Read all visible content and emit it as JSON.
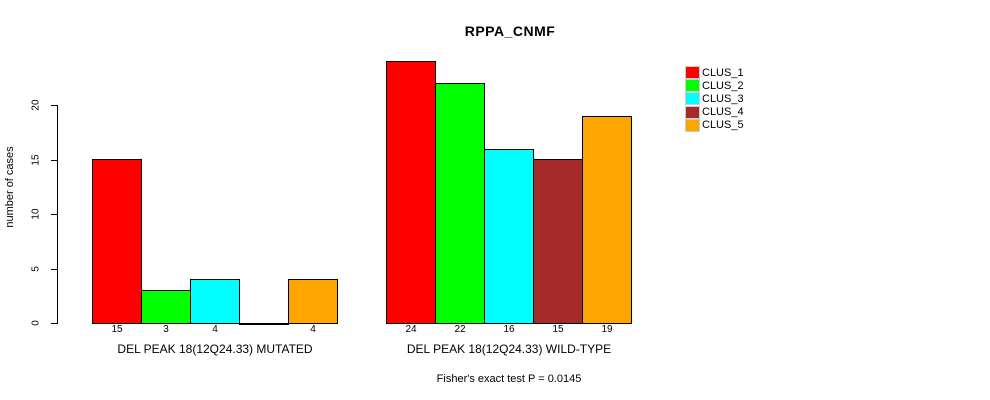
{
  "figure": {
    "title": "RPPA_CNMF",
    "y_axis_label": "number of cases",
    "caption": "Fisher's exact test P = 0.0145"
  },
  "chart_data": {
    "type": "bar",
    "title": "RPPA_CNMF",
    "xlabel": "",
    "ylabel": "number of cases",
    "ylim": [
      0,
      20
    ],
    "yticks": [
      0,
      5,
      10,
      15,
      20
    ],
    "grid": false,
    "legend_position": "right",
    "legend": [
      "CLUS_1",
      "CLUS_2",
      "CLUS_3",
      "CLUS_4",
      "CLUS_5"
    ],
    "series_colors": [
      "#ff0000",
      "#00ff00",
      "#00ffff",
      "#a52a2a",
      "#ffa500"
    ],
    "groups": [
      {
        "label": "DEL PEAK 18(12Q24.33) MUTATED",
        "values": [
          15,
          3,
          4,
          0,
          4
        ],
        "bar_labels": [
          "15",
          "3",
          "4",
          "",
          "4"
        ]
      },
      {
        "label": "DEL PEAK 18(12Q24.33) WILD-TYPE",
        "values": [
          24,
          22,
          16,
          15,
          19
        ],
        "bar_labels": [
          "24",
          "22",
          "16",
          "15",
          "19"
        ]
      }
    ],
    "annotation": "Fisher's exact test P = 0.0145"
  }
}
